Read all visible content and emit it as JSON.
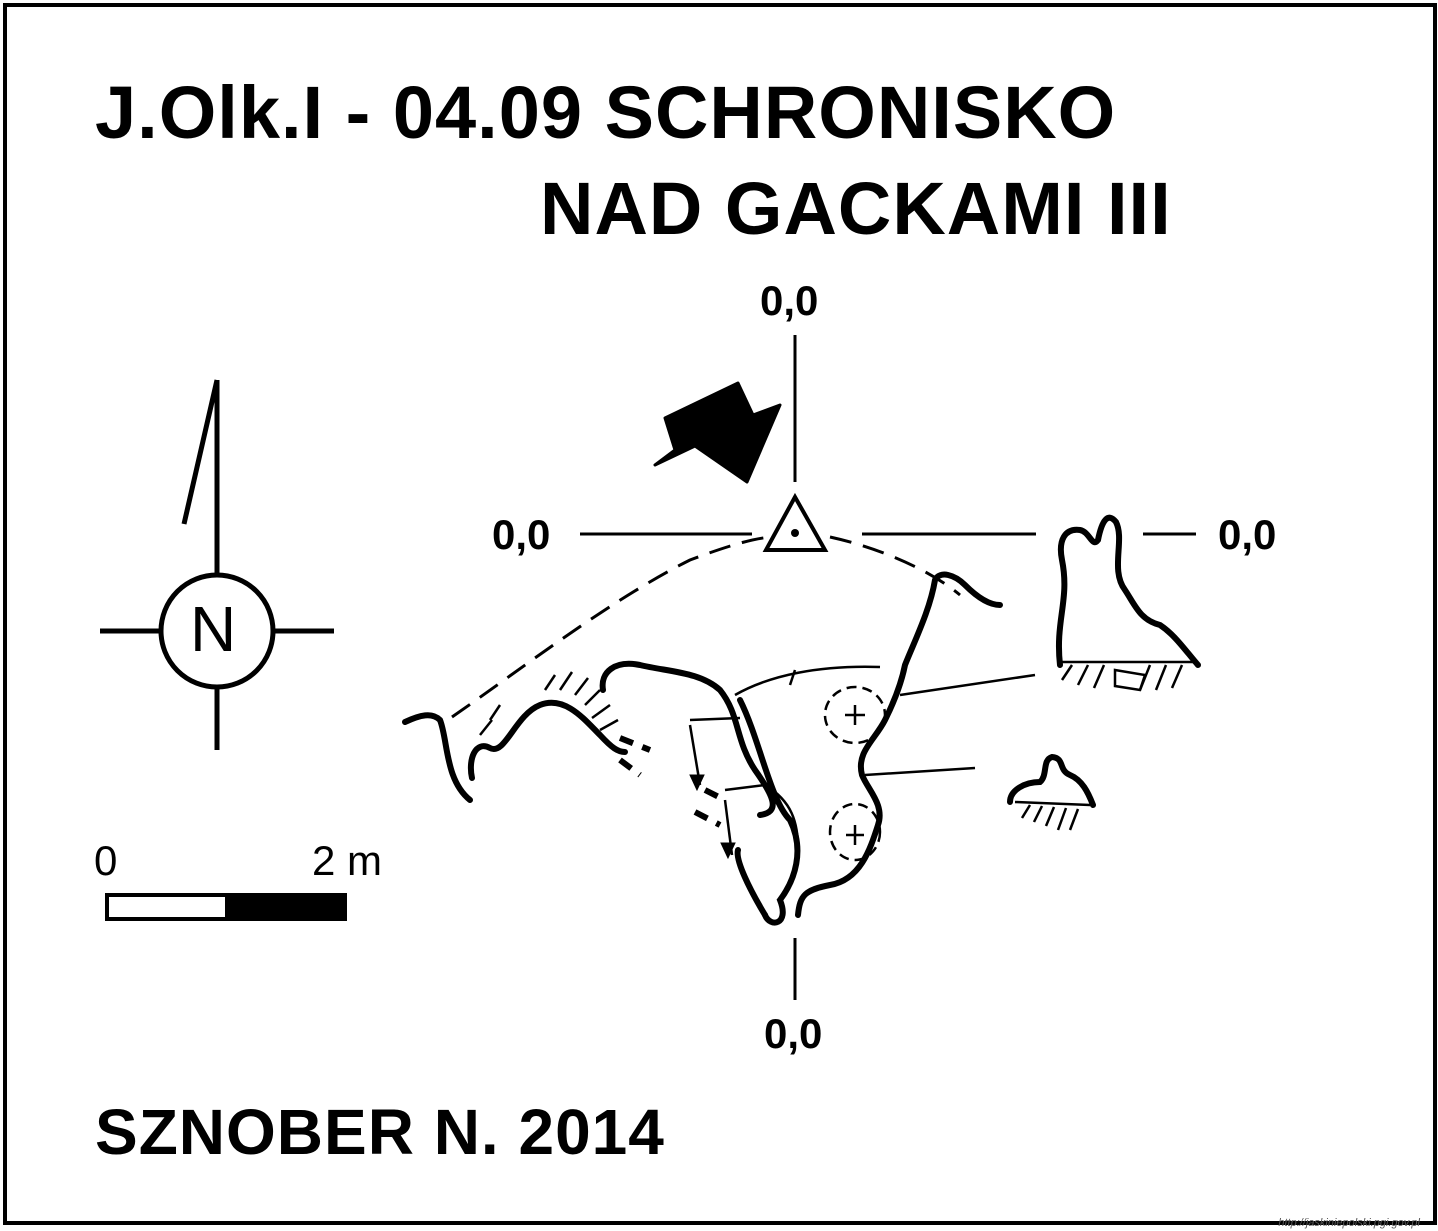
{
  "title": {
    "line1": "J.Olk.I - 04.09  SCHRONISKO",
    "line2": "NAD GACKAMI III"
  },
  "author_year": "SZNOBER N.  2014",
  "coordinates": {
    "top": "0,0",
    "left": "0,0",
    "right": "0,0",
    "bottom": "0,0"
  },
  "north_arrow": {
    "letter": "N",
    "icon": "north-arrow-icon"
  },
  "scale_bar": {
    "start_label": "0",
    "end_label": "2 m"
  },
  "source_url": "http://jaskiniepolski.pgi.gov.pl",
  "colors": {
    "ink": "#000000",
    "paper": "#ffffff"
  }
}
